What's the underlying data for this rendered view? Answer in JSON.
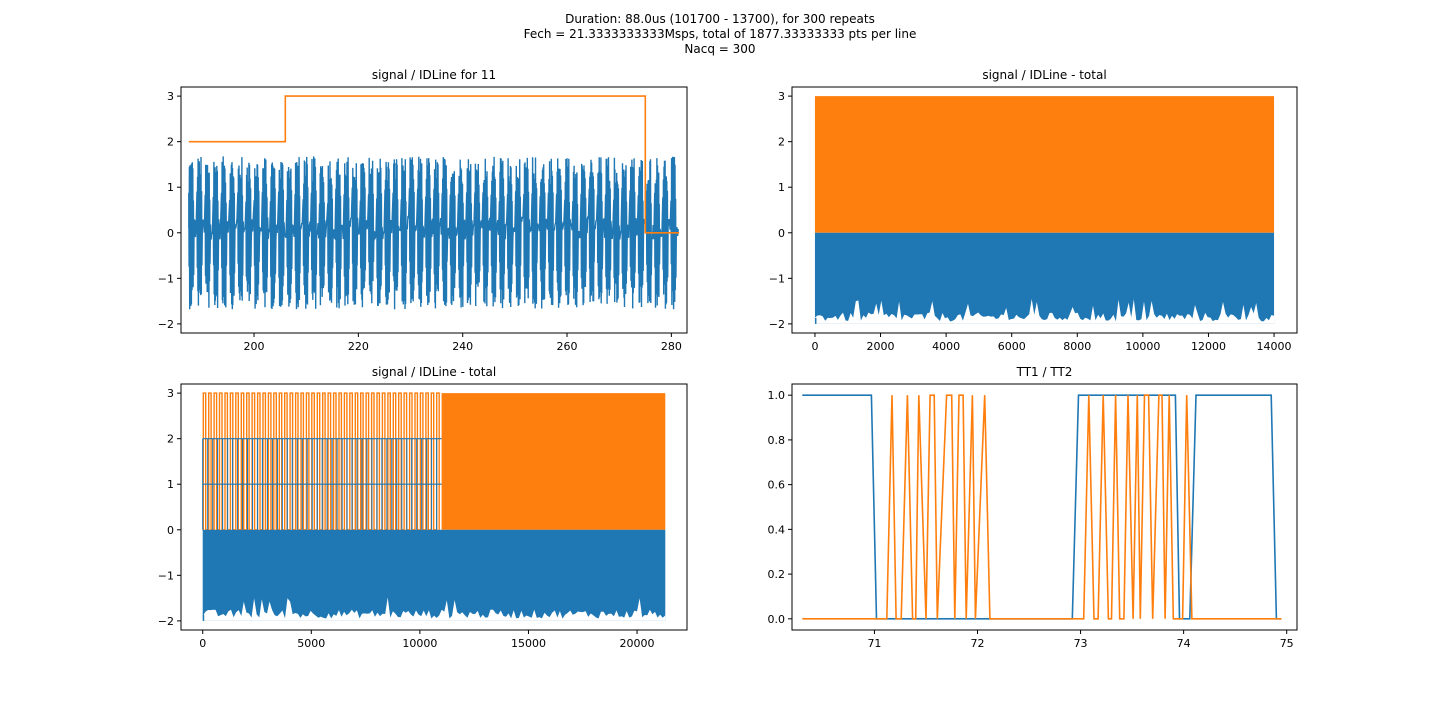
{
  "figure": {
    "suptitle_lines": [
      "Duration: 88.0us (101700 - 13700), for 300 repeats",
      "Fech = 21.3333333333Msps, total of 1877.33333333 pts per line",
      "Nacq = 300"
    ]
  },
  "chart_data": [
    {
      "type": "line",
      "title": "signal / IDLine for 11",
      "xlabel": "",
      "ylabel": "",
      "xlim": [
        186,
        283
      ],
      "ylim": [
        -2.2,
        3.2
      ],
      "xticks": [
        200,
        220,
        240,
        260,
        280
      ],
      "yticks": [
        -2,
        -1,
        0,
        1,
        2,
        3
      ],
      "grid": false,
      "series": [
        {
          "color": "#1f77b4",
          "style": "oscillating-bursts",
          "x_range": [
            187.5,
            281.5
          ],
          "note_values": {
            "baseline": 0.1,
            "typical_max": 1.4,
            "typical_min": -1.4,
            "peak_max": 2.0,
            "peak_min": -2.0,
            "bursts": 60
          }
        },
        {
          "color": "#ff7f0e",
          "style": "step",
          "x": [
            187.5,
            206,
            206,
            275,
            275,
            281.5
          ],
          "y": [
            2,
            2,
            3,
            3,
            0,
            0
          ]
        }
      ]
    },
    {
      "type": "area",
      "title": "signal / IDLine - total",
      "xlabel": "",
      "ylabel": "",
      "xlim": [
        -700,
        14700
      ],
      "ylim": [
        -2.2,
        3.2
      ],
      "xticks": [
        0,
        2000,
        4000,
        6000,
        8000,
        10000,
        12000,
        14000
      ],
      "yticks": [
        -2,
        -1,
        0,
        1,
        2,
        3
      ],
      "grid": false,
      "series": [
        {
          "color": "#ff7f0e",
          "x_range": [
            0,
            14000
          ],
          "y_range": [
            0,
            3
          ]
        },
        {
          "color": "#1f77b4",
          "x_range": [
            0,
            14000
          ],
          "y_range": [
            -2,
            0
          ]
        }
      ]
    },
    {
      "type": "area",
      "title": "signal / IDLine - total",
      "xlabel": "",
      "ylabel": "",
      "xlim": [
        -1000,
        22300
      ],
      "ylim": [
        -2.2,
        3.2
      ],
      "xticks": [
        0,
        5000,
        10000,
        15000,
        20000
      ],
      "yticks": [
        -2,
        -1,
        0,
        1,
        2,
        3
      ],
      "grid": false,
      "series": [
        {
          "color": "#ff7f0e",
          "pulsed_until": 11000,
          "pulse_count": 44,
          "x_range": [
            0,
            21300
          ],
          "y_range": [
            0,
            3
          ]
        },
        {
          "color": "#1f77b4",
          "x_range": [
            0,
            21300
          ],
          "y_range": [
            -2,
            0
          ],
          "pulsed_until": 11000,
          "pulse_levels": [
            1,
            2
          ]
        }
      ]
    },
    {
      "type": "line",
      "title": "TT1 / TT2",
      "xlabel": "",
      "ylabel": "",
      "xlim": [
        70.2,
        75.1
      ],
      "ylim": [
        -0.05,
        1.05
      ],
      "xticks": [
        71,
        72,
        73,
        74,
        75
      ],
      "yticks": [
        0.0,
        0.2,
        0.4,
        0.6,
        0.8,
        1.0
      ],
      "grid": false,
      "series": [
        {
          "color": "#1f77b4",
          "x": [
            70.3,
            70.97,
            71.02,
            72.92,
            72.98,
            73.92,
            73.96,
            74.06,
            74.12,
            74.85,
            74.9,
            74.95
          ],
          "y": [
            1,
            1,
            0,
            0,
            1,
            1,
            0,
            0,
            1,
            1,
            0,
            0
          ]
        },
        {
          "color": "#ff7f0e",
          "x": [
            70.3,
            71.12,
            71.17,
            71.21,
            71.26,
            71.32,
            71.37,
            71.4,
            71.43,
            71.5,
            71.54,
            71.58,
            71.61,
            71.7,
            71.75,
            71.78,
            71.82,
            71.86,
            71.89,
            71.95,
            71.98,
            72.07,
            72.12,
            72.98,
            73.03,
            73.08,
            73.13,
            73.17,
            73.22,
            73.27,
            73.3,
            73.34,
            73.38,
            73.42,
            73.46,
            73.51,
            73.55,
            73.58,
            73.62,
            73.66,
            73.7,
            73.76,
            73.79,
            73.82,
            73.86,
            73.9,
            73.95,
            73.99,
            74.03,
            74.08,
            74.95
          ],
          "y": [
            0,
            0,
            1,
            0,
            0,
            1,
            0,
            0,
            1,
            0,
            1,
            1,
            0,
            1,
            1,
            0,
            1,
            1,
            0,
            1,
            0,
            1,
            0,
            0,
            0,
            1,
            0,
            0,
            1,
            0,
            0,
            1,
            0,
            0,
            1,
            0,
            1,
            0,
            1,
            1,
            0,
            1,
            1,
            0,
            1,
            0,
            0,
            0,
            1,
            0,
            0
          ]
        }
      ]
    }
  ]
}
